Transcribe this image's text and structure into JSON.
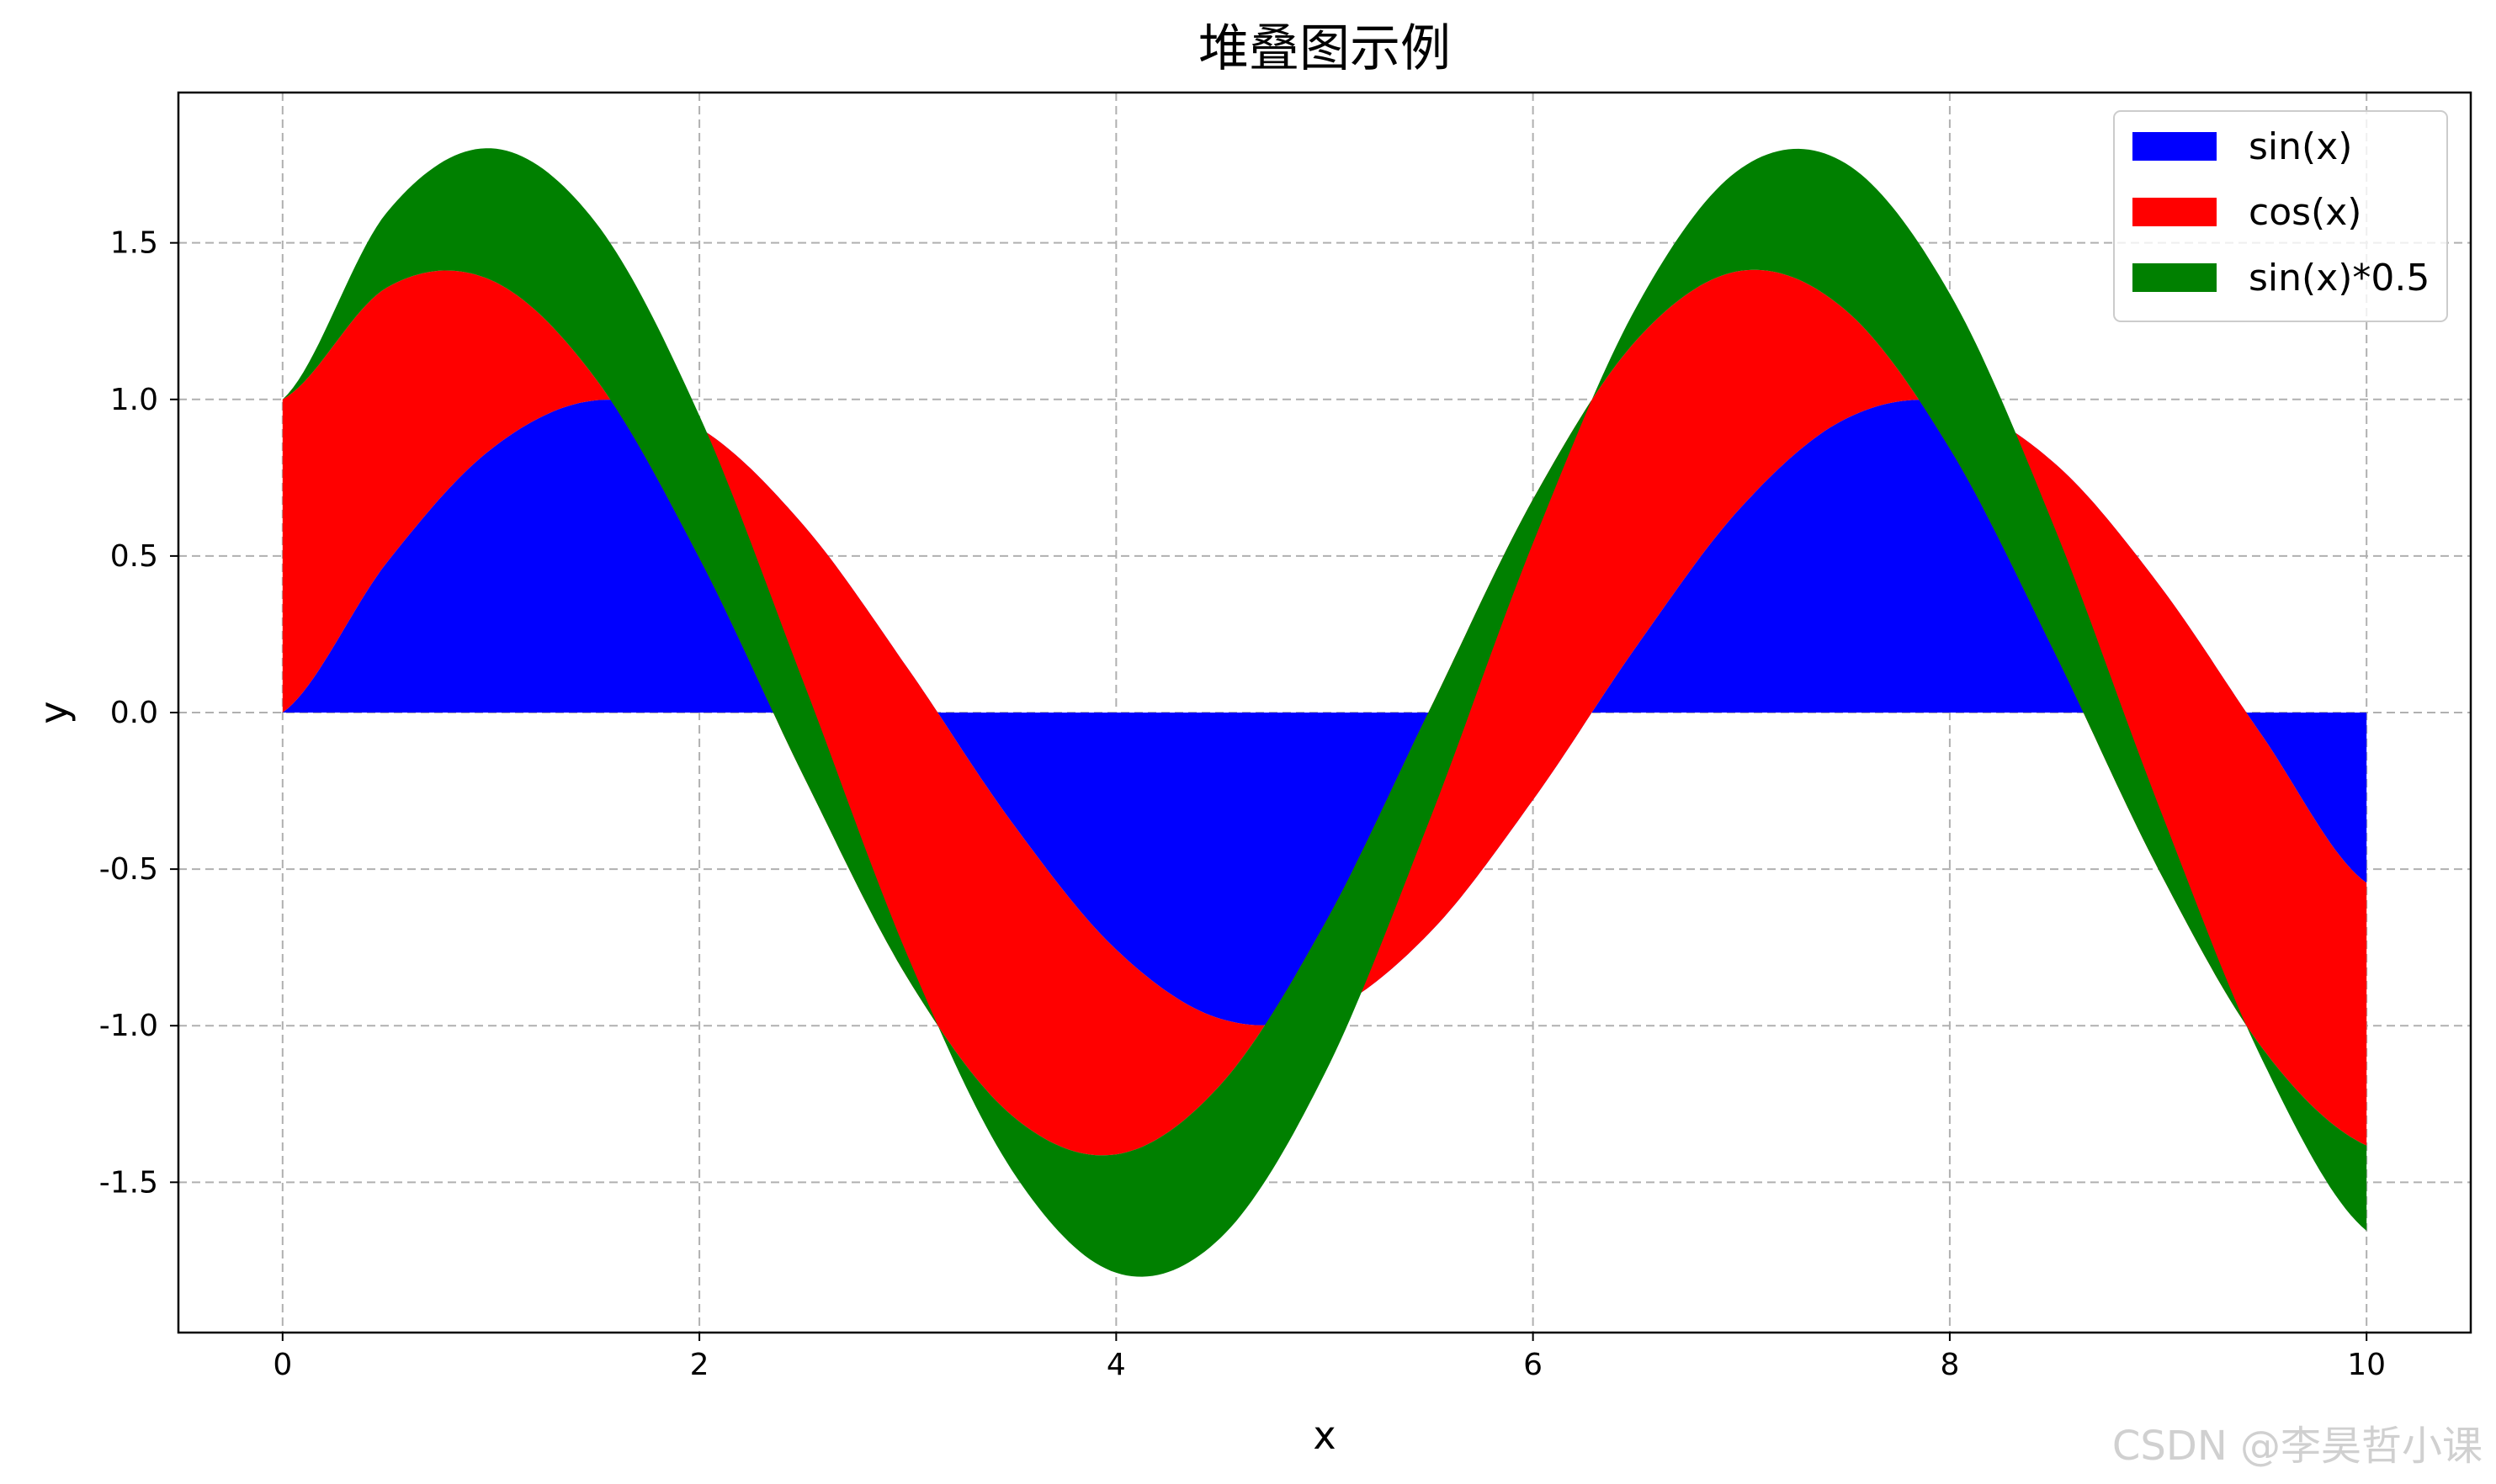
{
  "chart_data": {
    "type": "area",
    "stacked": true,
    "title": "堆叠图示例",
    "xlabel": "x",
    "ylabel": "y",
    "xlim": [
      -0.5,
      10.5
    ],
    "ylim": [
      -1.98,
      1.98
    ],
    "xticks": [
      0,
      2,
      4,
      6,
      8,
      10
    ],
    "xtick_labels": [
      "0",
      "2",
      "4",
      "6",
      "8",
      "10"
    ],
    "yticks": [
      -1.5,
      -1.0,
      -0.5,
      0.0,
      0.5,
      1.0,
      1.5
    ],
    "ytick_labels": [
      "-1.5",
      "-1.0",
      "-0.5",
      "0.0",
      "0.5",
      "1.0",
      "1.5"
    ],
    "grid": true,
    "legend_position": "top-right",
    "x": [
      0,
      0.5,
      1,
      1.5,
      2,
      2.5,
      3,
      3.5,
      4,
      4.5,
      5,
      5.5,
      6,
      6.5,
      7,
      7.5,
      8,
      8.5,
      9,
      9.5,
      10
    ],
    "series": [
      {
        "name": "sin(x)",
        "color": "#0000ff",
        "values": [
          0.0,
          0.479,
          0.841,
          0.997,
          0.909,
          0.598,
          0.141,
          -0.351,
          -0.757,
          -0.978,
          -0.959,
          -0.706,
          -0.279,
          0.215,
          0.657,
          0.938,
          0.989,
          0.798,
          0.412,
          -0.075,
          -0.544
        ]
      },
      {
        "name": "cos(x)",
        "color": "#ff0000",
        "values": [
          1.0,
          0.878,
          0.54,
          0.071,
          -0.416,
          -0.801,
          -0.99,
          -0.936,
          -0.654,
          -0.211,
          0.284,
          0.709,
          0.96,
          0.977,
          0.754,
          0.347,
          -0.146,
          -0.602,
          -0.911,
          -0.997,
          -0.839
        ]
      },
      {
        "name": "sin(x)*0.5",
        "color": "#008000",
        "values": [
          0.0,
          0.24,
          0.421,
          0.499,
          0.455,
          0.299,
          0.071,
          -0.175,
          -0.378,
          -0.489,
          -0.479,
          -0.353,
          -0.14,
          0.108,
          0.328,
          0.469,
          0.495,
          0.399,
          0.206,
          -0.038,
          -0.272
        ]
      }
    ]
  },
  "watermark": "CSDN @李昊哲小课"
}
